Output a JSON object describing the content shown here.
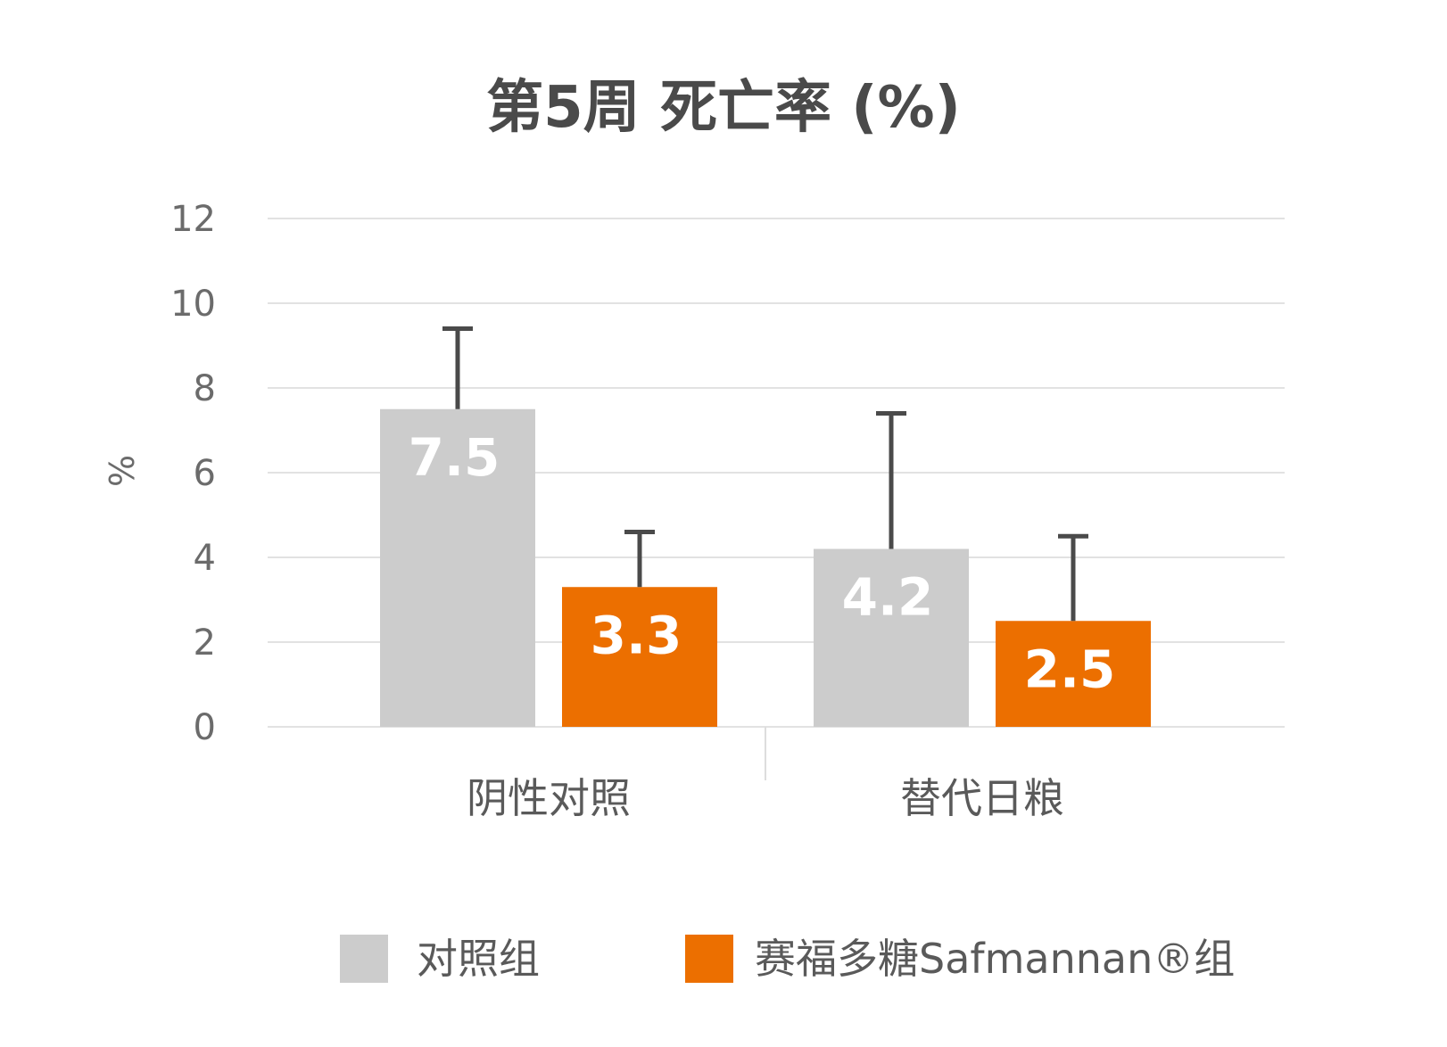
{
  "chart_data": {
    "type": "bar",
    "title": "第5周  死亡率 (%)",
    "ylabel": "%",
    "ylim": [
      0,
      12
    ],
    "yticks": [
      0,
      2,
      4,
      6,
      8,
      10,
      12
    ],
    "categories": [
      "阴性对照",
      "替代日粮"
    ],
    "series": [
      {
        "name": "对照组",
        "color": "#cccccc",
        "values": [
          7.5,
          4.2
        ],
        "labels": [
          "7.5",
          "4.2"
        ],
        "error_upper": [
          9.4,
          7.4
        ]
      },
      {
        "name": "赛福多糖Safmannan®组",
        "color": "#ec6f00",
        "values": [
          3.3,
          2.5
        ],
        "labels": [
          "3.3",
          "2.5"
        ],
        "error_upper": [
          4.6,
          4.5
        ]
      }
    ],
    "grid": true,
    "legend_position": "bottom"
  }
}
